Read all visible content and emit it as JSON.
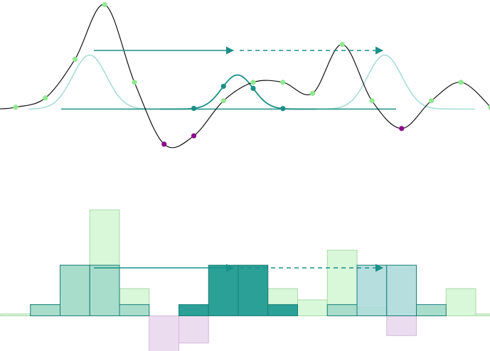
{
  "colors": {
    "signal": "#111111",
    "kernel": "#1a8f87",
    "kernel_faint": "#a8ddd6",
    "point_positive": "#90e890",
    "point_negative": "#8b0a8b",
    "point_kernel": "#1a8f87",
    "bar_positive_fill": "#d9f7d9",
    "bar_positive_stroke": "#a8d8a8",
    "bar_negative_fill": "#ecdcef",
    "bar_negative_stroke": "#d2b8d8",
    "bar_product_fill": "#2aa097",
    "bar_product_stroke": "#1a7f78",
    "bar_overlap_fill": "#9fd8c8",
    "bar_light_fill": "#a9d8d8"
  },
  "icons": [
    "arrow-solid-icon",
    "arrow-dashed-icon"
  ],
  "signal_samples": [
    {
      "t": 0,
      "v": 0.2,
      "sign": "positive"
    },
    {
      "t": 1,
      "v": 1.2,
      "sign": "positive"
    },
    {
      "t": 2,
      "v": 5.4,
      "sign": "positive"
    },
    {
      "t": 3,
      "v": 11.3,
      "sign": "positive"
    },
    {
      "t": 4,
      "v": 2.9,
      "sign": "positive"
    },
    {
      "t": 5,
      "v": -3.8,
      "sign": "negative"
    },
    {
      "t": 6,
      "v": -2.9,
      "sign": "negative"
    },
    {
      "t": 7,
      "v": 0.9,
      "sign": "positive"
    },
    {
      "t": 8,
      "v": 2.9,
      "sign": "positive"
    },
    {
      "t": 9,
      "v": 2.9,
      "sign": "positive"
    },
    {
      "t": 10,
      "v": 1.7,
      "sign": "positive"
    },
    {
      "t": 11,
      "v": 7.0,
      "sign": "positive"
    },
    {
      "t": 12,
      "v": 0.9,
      "sign": "positive"
    },
    {
      "t": 13,
      "v": -2.1,
      "sign": "negative"
    },
    {
      "t": 14,
      "v": 0.9,
      "sign": "positive"
    },
    {
      "t": 15,
      "v": 2.9,
      "sign": "positive"
    },
    {
      "t": 16,
      "v": 0.2,
      "sign": "positive"
    }
  ],
  "kernel_window": [
    0.05,
    1.0,
    1.0,
    0.05
  ],
  "product_bars": [
    {
      "t": 1,
      "v": 1.2,
      "style": "overlap"
    },
    {
      "t": 2,
      "v": 5.4,
      "style": "overlap"
    },
    {
      "t": 3,
      "v": 5.4,
      "style": "overlap"
    },
    {
      "t": 4,
      "v": 1.2,
      "style": "overlap"
    },
    {
      "t": 6,
      "v": 1.2,
      "style": "product"
    },
    {
      "t": 7,
      "v": 5.4,
      "style": "product"
    },
    {
      "t": 8,
      "v": 5.4,
      "style": "product"
    },
    {
      "t": 9,
      "v": 1.2,
      "style": "product"
    },
    {
      "t": 11,
      "v": 1.2,
      "style": "overlap"
    },
    {
      "t": 12,
      "v": 5.4,
      "style": "light"
    },
    {
      "t": 13,
      "v": 5.4,
      "style": "light"
    },
    {
      "t": 14,
      "v": 1.2,
      "style": "overlap"
    }
  ]
}
